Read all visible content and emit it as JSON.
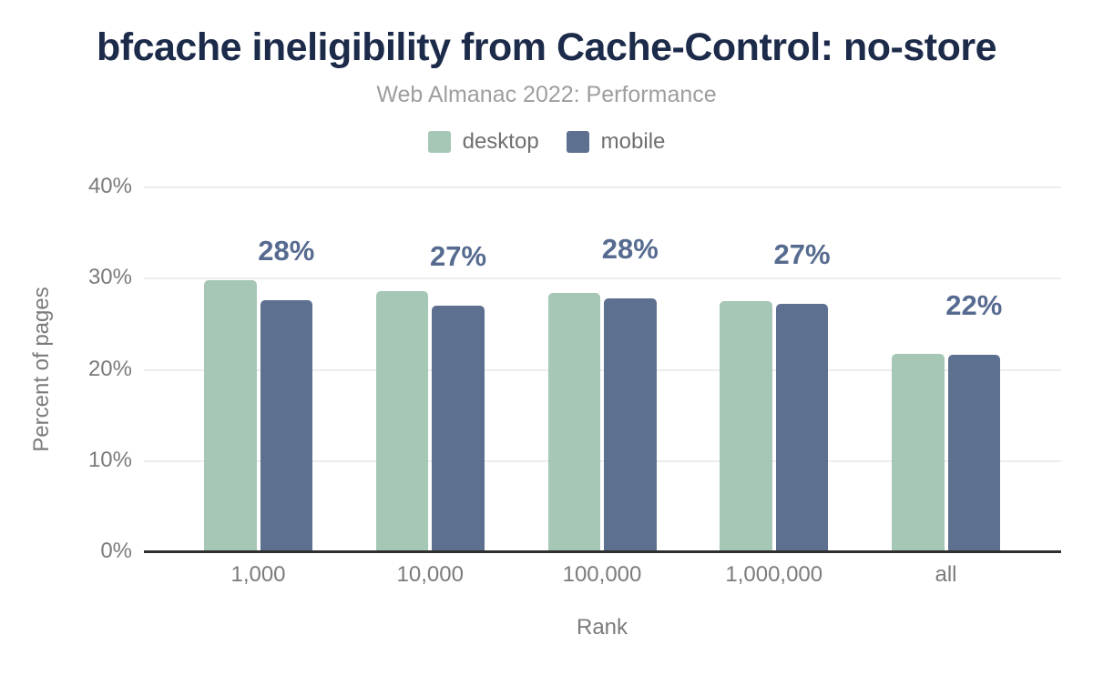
{
  "chart_data": {
    "type": "bar",
    "title": "bfcache ineligibility from Cache-Control: no-store",
    "subtitle": "Web Almanac 2022: Performance",
    "xlabel": "Rank",
    "ylabel": "Percent of pages",
    "categories": [
      "1,000",
      "10,000",
      "100,000",
      "1,000,000",
      "all"
    ],
    "series": [
      {
        "name": "desktop",
        "values": [
          29.8,
          28.6,
          28.4,
          27.5,
          21.7
        ]
      },
      {
        "name": "mobile",
        "values": [
          27.6,
          27.0,
          27.8,
          27.2,
          21.6
        ]
      }
    ],
    "data_labels": [
      "28%",
      "27%",
      "28%",
      "27%",
      "22%"
    ],
    "data_labels_follow_series": "mobile",
    "ylim": [
      0,
      40
    ],
    "yticks": [
      {
        "value": 0,
        "label": "0%"
      },
      {
        "value": 10,
        "label": "10%"
      },
      {
        "value": 20,
        "label": "20%"
      },
      {
        "value": 30,
        "label": "30%"
      },
      {
        "value": 40,
        "label": "40%"
      }
    ],
    "grid": "horizontal",
    "legend_position": "top"
  },
  "colors": {
    "title": "#1d2b4a",
    "subtitle": "#9e9e9e",
    "legend_text": "#6f6f6f",
    "axis_text": "#7b7b7b",
    "desktop_bar": "#a6c7b5",
    "mobile_bar": "#5d7090",
    "data_label": "#566b8f",
    "gridline": "#ededed",
    "axis_line": "#303030"
  }
}
